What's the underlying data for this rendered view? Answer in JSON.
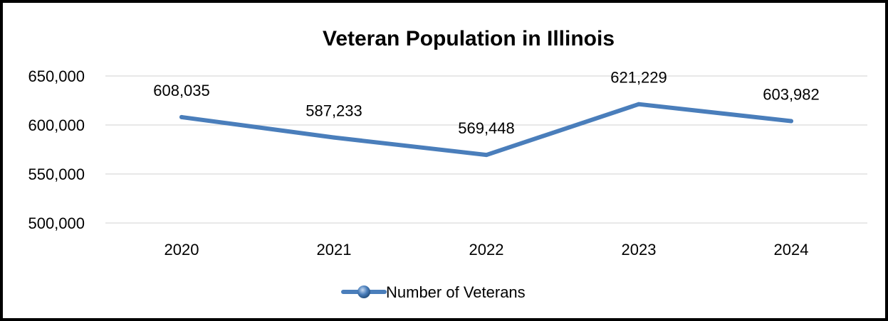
{
  "chart_data": {
    "type": "line",
    "title": "Veteran Population in Illinois",
    "categories": [
      "2020",
      "2021",
      "2022",
      "2023",
      "2024"
    ],
    "series": [
      {
        "name": "Number of Veterans",
        "values": [
          608035,
          587233,
          569448,
          621229,
          603982
        ],
        "labels": [
          "608,035",
          "587,233",
          "569,448",
          "621,229",
          "603,982"
        ],
        "color": "#4a7ebb"
      }
    ],
    "ylim": [
      500000,
      650000
    ],
    "yticks": [
      {
        "value": 650000,
        "label": "650,000"
      },
      {
        "value": 600000,
        "label": "600,000"
      },
      {
        "value": 550000,
        "label": "550,000"
      },
      {
        "value": 500000,
        "label": "500,000"
      }
    ],
    "grid": true,
    "legend_position": "bottom"
  }
}
